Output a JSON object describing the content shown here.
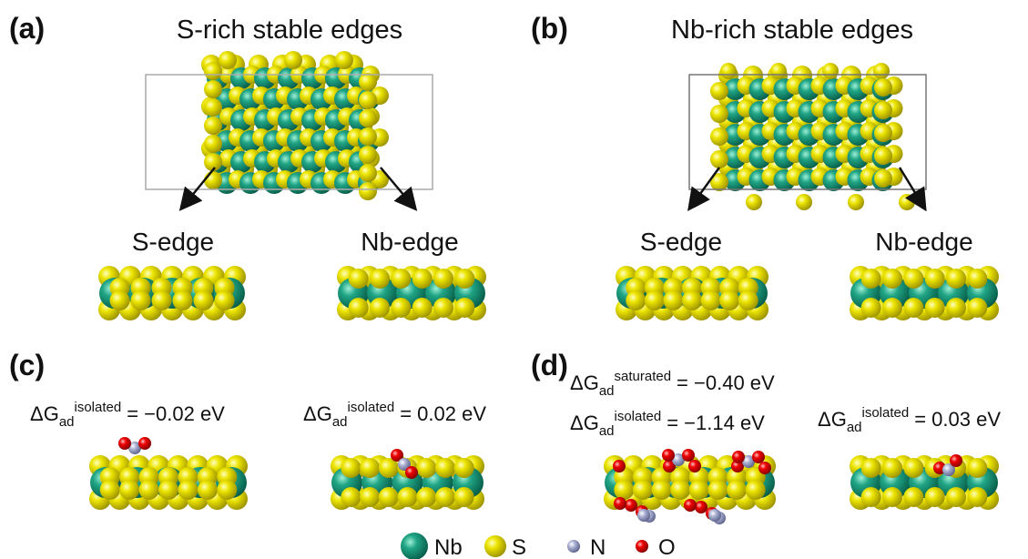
{
  "panels": [
    {
      "label": "(a)",
      "title": "S-rich stable edges",
      "edges": [
        "S-edge",
        "Nb-edge"
      ]
    },
    {
      "label": "(b)",
      "title": "Nb-rich stable edges",
      "edges": [
        "S-edge",
        "Nb-edge"
      ]
    },
    {
      "label": "(c)",
      "energies": [
        {
          "symbol": "ΔG",
          "sub": "ad",
          "sup": "isolated",
          "value": "= −0.02 eV"
        },
        {
          "symbol": "ΔG",
          "sub": "ad",
          "sup": "isolated",
          "value": "= 0.02 eV"
        }
      ]
    },
    {
      "label": "(d)",
      "energies": [
        {
          "symbol": "ΔG",
          "sub": "ad",
          "sup": "saturated",
          "value": "= −0.40 eV"
        },
        {
          "symbol": "ΔG",
          "sub": "ad",
          "sup": "isolated",
          "value": "= −1.14 eV"
        },
        {
          "symbol": "ΔG",
          "sub": "ad",
          "sup": "isolated",
          "value": "= 0.03 eV"
        }
      ]
    }
  ],
  "legend": [
    "Nb",
    "S",
    "N",
    "O"
  ]
}
